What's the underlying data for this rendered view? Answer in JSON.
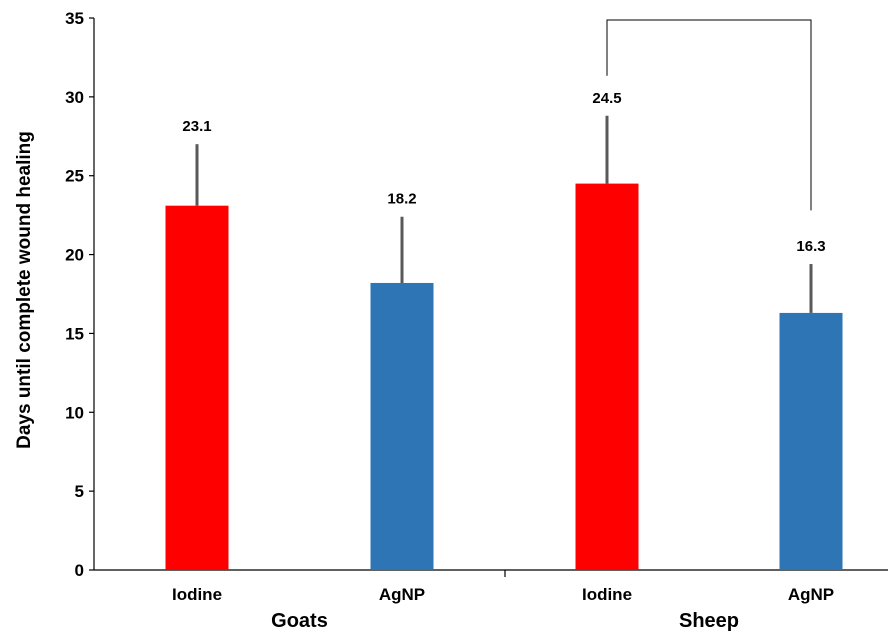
{
  "chart_data": {
    "type": "bar",
    "title": "",
    "xlabel": "",
    "ylabel": "Days until complete wound healing",
    "ylim": [
      0,
      35
    ],
    "yticks": [
      0,
      5,
      10,
      15,
      20,
      25,
      30,
      35
    ],
    "grid": false,
    "groups": [
      {
        "name": "Goats",
        "bars": [
          {
            "label": "Iodine",
            "value": 23.1,
            "error": 3.9,
            "value_label": "23.1",
            "color": "#ff0000"
          },
          {
            "label": "AgNP",
            "value": 18.2,
            "error": 4.2,
            "value_label": "18.2",
            "color": "#2e75b6"
          }
        ]
      },
      {
        "name": "Sheep",
        "bars": [
          {
            "label": "Iodine",
            "value": 24.5,
            "error": 4.3,
            "value_label": "24.5",
            "color": "#ff0000"
          },
          {
            "label": "AgNP",
            "value": 16.3,
            "error": 3.1,
            "value_label": "16.3",
            "color": "#2e75b6"
          }
        ]
      }
    ],
    "significance_bracket": {
      "from": "Sheep Iodine",
      "to": "Sheep AgNP",
      "top_value": 35,
      "right_end_value": 22.8
    }
  }
}
